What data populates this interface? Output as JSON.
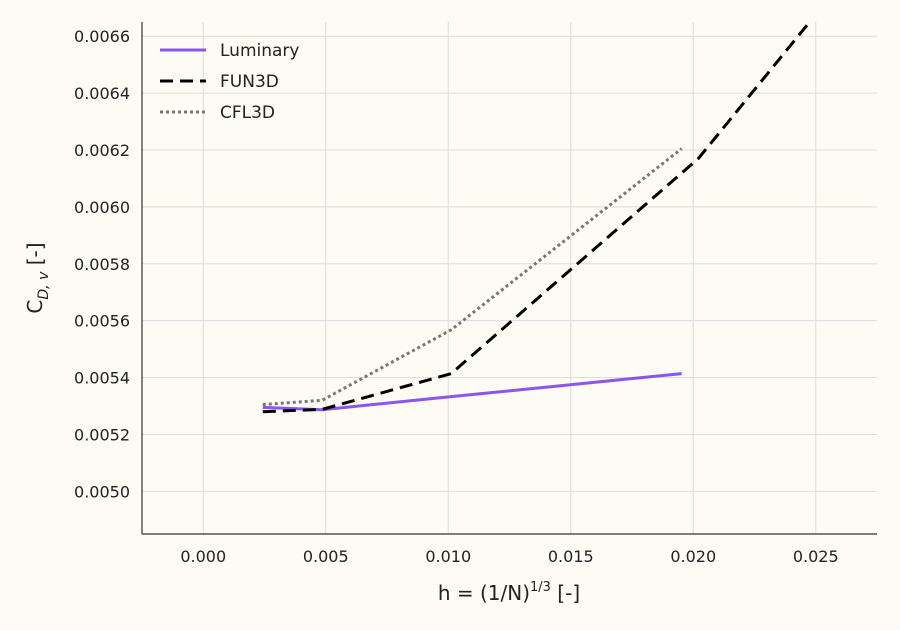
{
  "chart_data": {
    "type": "line",
    "xlabel": "h = (1/N)",
    "xlabel_superscript": "1/3",
    "xlabel_unit": " [-]",
    "ylabel": "C",
    "ylabel_subscript": "D, v",
    "ylabel_unit": " [-]",
    "xlim": [
      -0.0025,
      0.0275
    ],
    "ylim": [
      0.00485,
      0.00665
    ],
    "xticks": [
      0.0,
      0.005,
      0.01,
      0.015,
      0.02,
      0.025
    ],
    "xtick_labels": [
      "0.000",
      "0.005",
      "0.010",
      "0.015",
      "0.020",
      "0.025"
    ],
    "yticks": [
      0.005,
      0.0052,
      0.0054,
      0.0056,
      0.0058,
      0.006,
      0.0062,
      0.0064,
      0.0066
    ],
    "ytick_labels": [
      "0.0050",
      "0.0052",
      "0.0054",
      "0.0056",
      "0.0058",
      "0.0060",
      "0.0062",
      "0.0064",
      "0.0066"
    ],
    "grid": true,
    "legend_position": "top-left",
    "series": [
      {
        "name": "Luminary",
        "color": "#8b55f0",
        "style": "solid",
        "x": [
          0.00243,
          0.00485,
          0.00976,
          0.01953
        ],
        "y": [
          0.005295,
          0.005287,
          0.00533,
          0.005414
        ]
      },
      {
        "name": "FUN3D",
        "color": "#000000",
        "style": "dashed",
        "x": [
          0.00243,
          0.00485,
          0.01012,
          0.02021,
          0.02475
        ],
        "y": [
          0.00528,
          0.005288,
          0.005414,
          0.00617,
          0.00665
        ]
      },
      {
        "name": "CFL3D",
        "color": "#777777",
        "style": "dotted",
        "x": [
          0.00243,
          0.00485,
          0.01012,
          0.01953
        ],
        "y": [
          0.005305,
          0.00532,
          0.005568,
          0.006205
        ]
      }
    ]
  }
}
